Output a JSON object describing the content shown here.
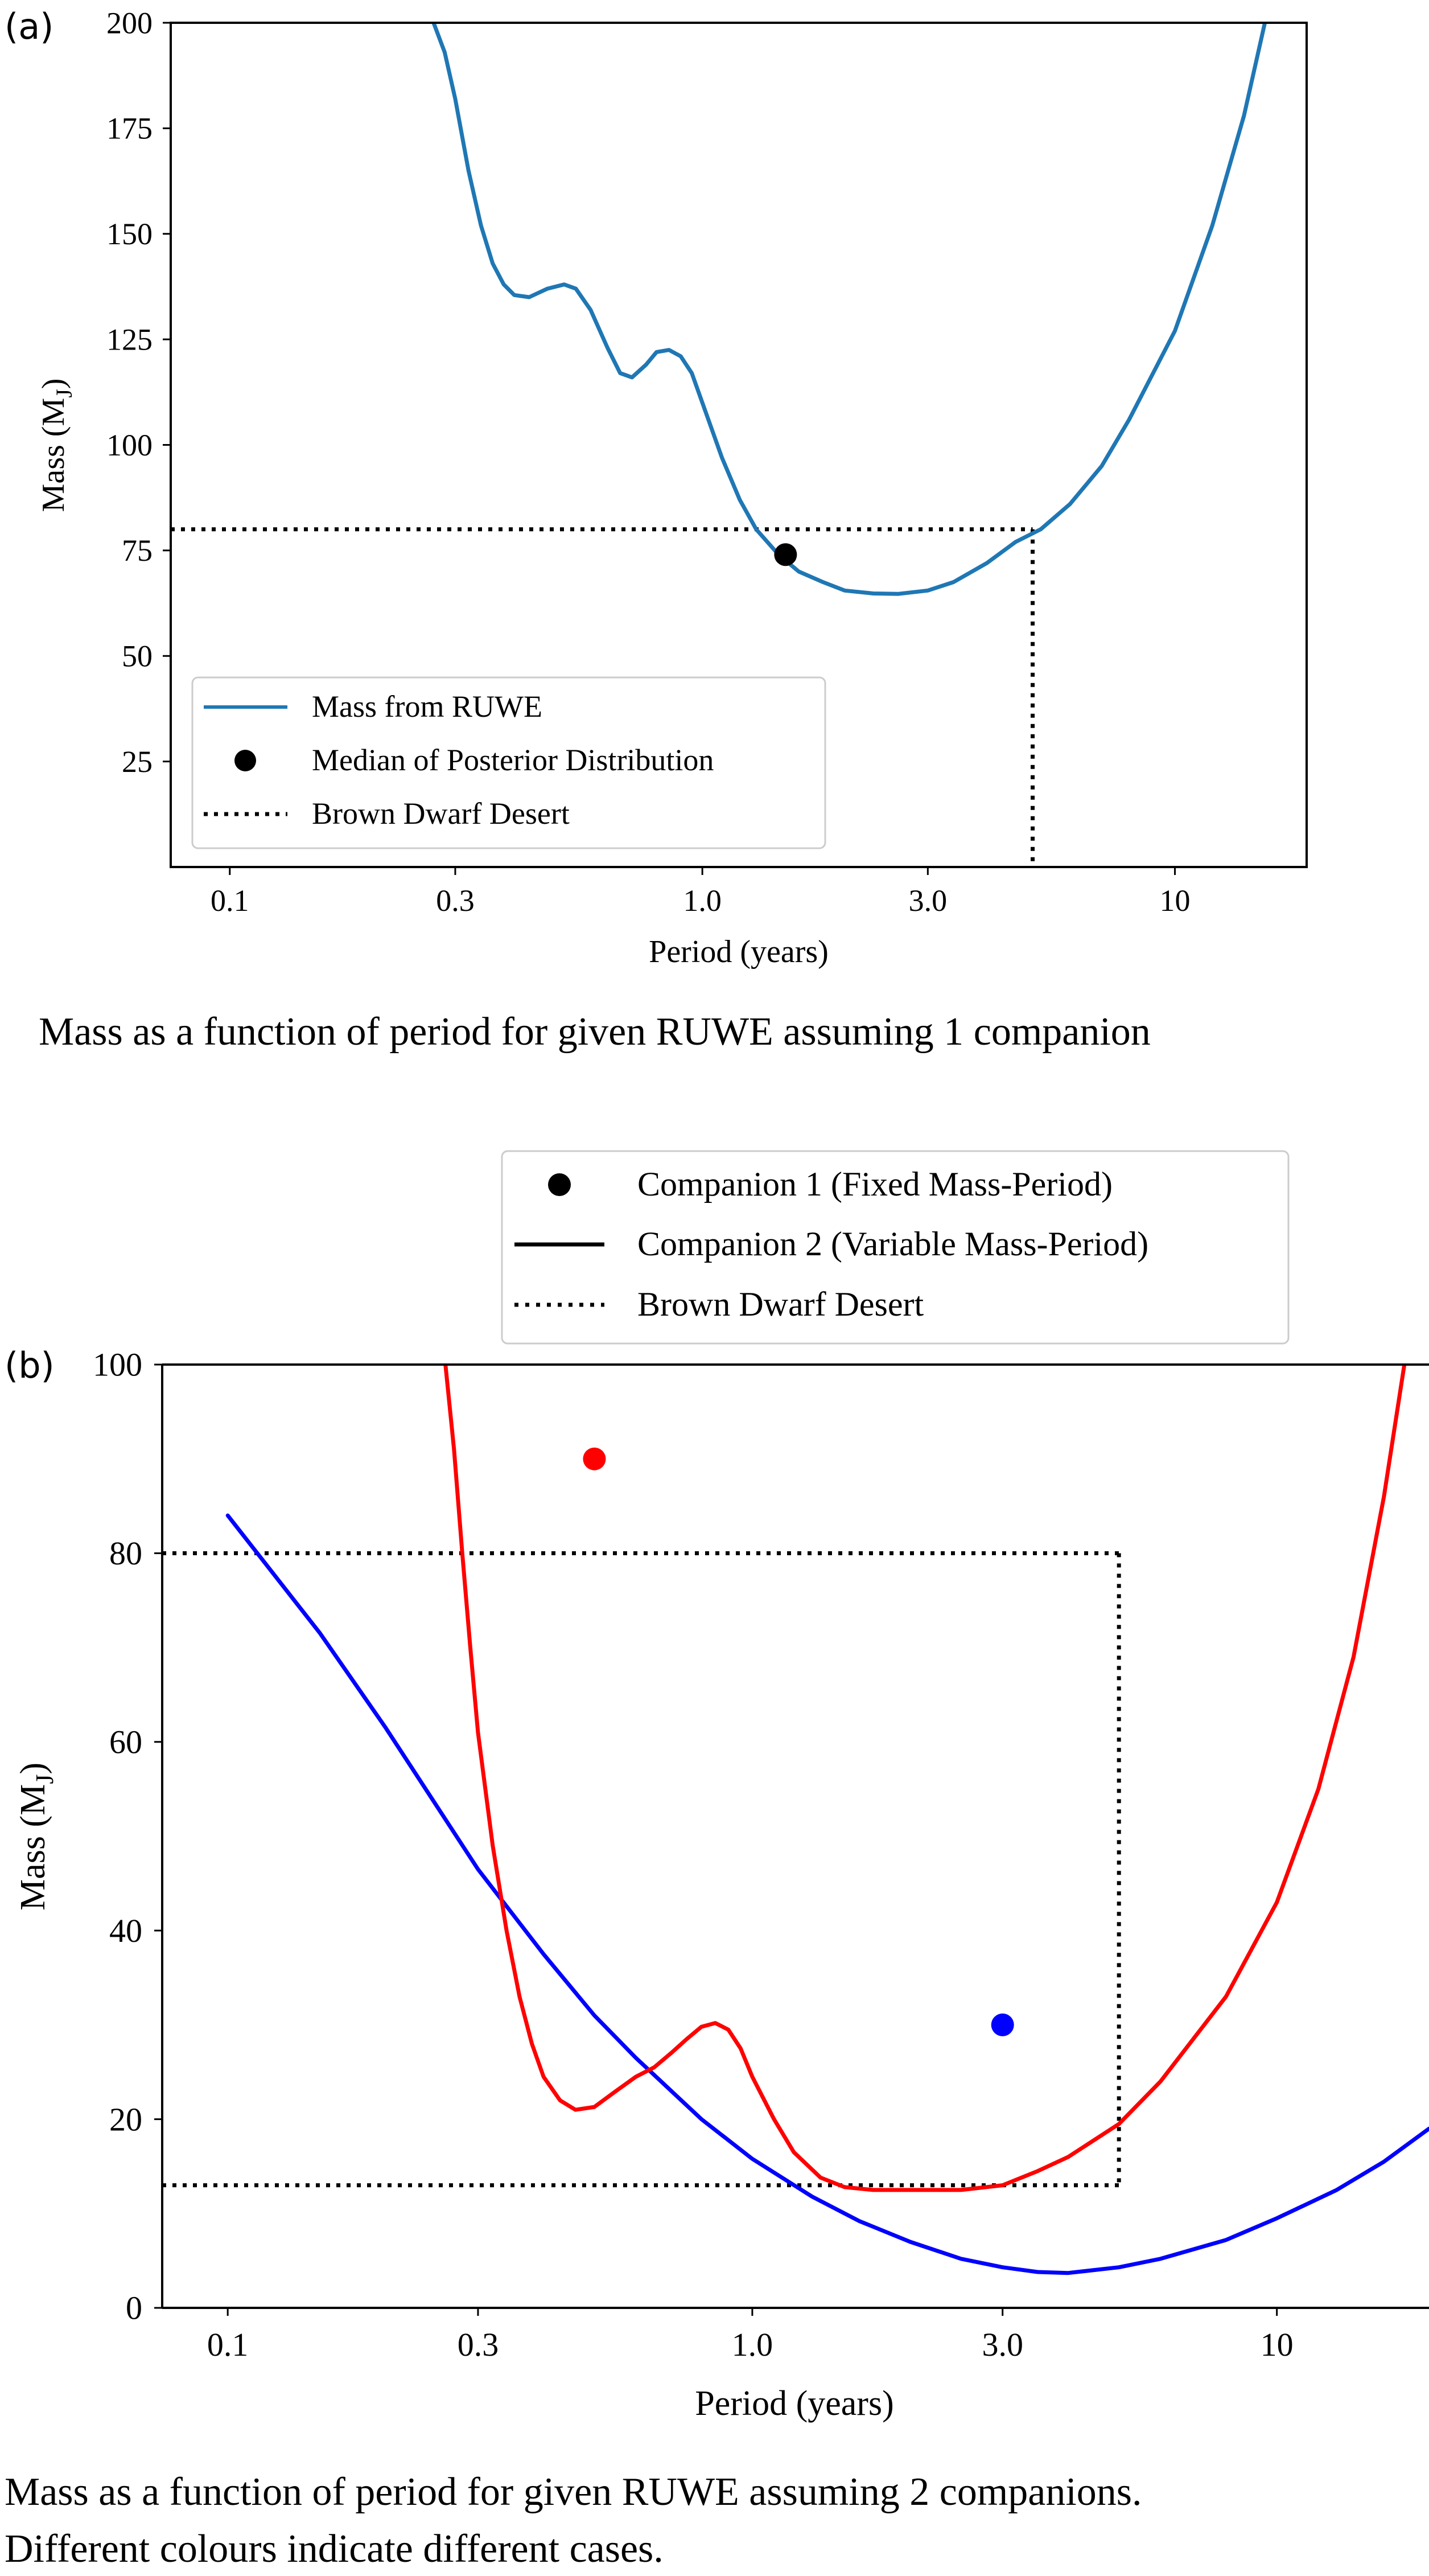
{
  "panel_a": {
    "label": "(a)",
    "caption": "Mass as a function of period for given RUWE assuming 1 companion"
  },
  "panel_b": {
    "label": "(b)",
    "caption_lines": [
      "Mass as a function of period for given RUWE assuming 2 companions.",
      "Different colours indicate different cases."
    ]
  },
  "chart_data": [
    {
      "id": "a",
      "type": "line",
      "xlabel": "Period (years)",
      "ylabel_main": "Mass (M",
      "ylabel_sub": "J",
      "ylabel_end": ")",
      "xscale": "log",
      "xlim": [
        0.075,
        19
      ],
      "ylim": [
        0,
        200
      ],
      "xticks": [
        {
          "value": 0.1,
          "label": "0.1"
        },
        {
          "value": 0.3,
          "label": "0.3"
        },
        {
          "value": 1.0,
          "label": "1.0"
        },
        {
          "value": 3.0,
          "label": "3.0"
        },
        {
          "value": 10,
          "label": "10"
        }
      ],
      "yticks": [
        {
          "value": 25,
          "label": "25"
        },
        {
          "value": 50,
          "label": "50"
        },
        {
          "value": 75,
          "label": "75"
        },
        {
          "value": 100,
          "label": "100"
        },
        {
          "value": 125,
          "label": "125"
        },
        {
          "value": 150,
          "label": "150"
        },
        {
          "value": 175,
          "label": "175"
        },
        {
          "value": 200,
          "label": "200"
        }
      ],
      "legend_position": "lower-left",
      "legend": [
        {
          "label": "Mass from RUWE",
          "kind": "line",
          "color": "#1f77b4"
        },
        {
          "label": "Median of Posterior Distribution",
          "kind": "marker",
          "color": "#000000"
        },
        {
          "label": "Brown Dwarf Desert",
          "kind": "dotted",
          "color": "#000000"
        }
      ],
      "series": [
        {
          "name": "Mass from RUWE",
          "color": "#1f77b4",
          "x": [
            0.27,
            0.285,
            0.3,
            0.32,
            0.34,
            0.36,
            0.38,
            0.4,
            0.43,
            0.47,
            0.51,
            0.54,
            0.58,
            0.63,
            0.67,
            0.71,
            0.76,
            0.8,
            0.85,
            0.9,
            0.95,
            1.0,
            1.1,
            1.2,
            1.3,
            1.45,
            1.6,
            1.8,
            2.0,
            2.3,
            2.6,
            3.0,
            3.4,
            4.0,
            4.6,
            5.2,
            6.0,
            7.0,
            8.0,
            10.0,
            12.0,
            14.0,
            15.5
          ],
          "y": [
            200,
            193,
            182,
            165,
            152,
            143,
            138,
            135.5,
            135,
            137,
            138,
            137,
            132,
            123,
            117,
            116,
            119,
            122,
            122.5,
            121,
            117,
            110,
            97,
            87,
            80,
            74,
            70,
            67.5,
            65.5,
            64.8,
            64.7,
            65.5,
            67.5,
            72,
            77,
            80,
            86,
            95,
            106,
            127,
            152,
            178,
            200
          ]
        }
      ],
      "points": [
        {
          "label": "Median of Posterior Distribution",
          "x": 1.5,
          "y": 74,
          "color": "#000000"
        }
      ],
      "desert": {
        "y": 80,
        "x_max": 5.0
      }
    },
    {
      "id": "b",
      "type": "line",
      "xlabel": "Period (years)",
      "ylabel_main": "Mass (M",
      "ylabel_sub": "J",
      "ylabel_end": ")",
      "xscale": "log",
      "xlim": [
        0.075,
        19.5
      ],
      "ylim": [
        0,
        100
      ],
      "xticks": [
        {
          "value": 0.1,
          "label": "0.1"
        },
        {
          "value": 0.3,
          "label": "0.3"
        },
        {
          "value": 1.0,
          "label": "1.0"
        },
        {
          "value": 3.0,
          "label": "3.0"
        },
        {
          "value": 10,
          "label": "10"
        }
      ],
      "yticks": [
        {
          "value": 0,
          "label": "0"
        },
        {
          "value": 20,
          "label": "20"
        },
        {
          "value": 40,
          "label": "40"
        },
        {
          "value": 60,
          "label": "60"
        },
        {
          "value": 80,
          "label": "80"
        },
        {
          "value": 100,
          "label": "100"
        }
      ],
      "legend_position": "above plot, right",
      "legend": [
        {
          "label": "Companion 1 (Fixed Mass-Period)",
          "kind": "marker",
          "color": "#000000"
        },
        {
          "label": "Companion 2 (Variable Mass-Period)",
          "kind": "line",
          "color": "#000000"
        },
        {
          "label": "Brown Dwarf Desert",
          "kind": "dotted",
          "color": "#000000"
        }
      ],
      "series": [
        {
          "color": "#0000ff",
          "x": [
            0.1,
            0.15,
            0.2,
            0.3,
            0.4,
            0.5,
            0.6,
            0.8,
            1.0,
            1.3,
            1.6,
            2.0,
            2.5,
            3.0,
            3.5,
            4.0,
            5.0,
            6.0,
            8.0,
            10.0,
            13.0,
            16.0,
            19.5
          ],
          "y": [
            84,
            71.5,
            61.5,
            46.5,
            37.5,
            31,
            26.5,
            20,
            15.8,
            11.8,
            9.2,
            7,
            5.2,
            4.3,
            3.8,
            3.7,
            4.3,
            5.2,
            7.2,
            9.5,
            12.5,
            15.5,
            19
          ]
        },
        {
          "color": "#ff0000",
          "x": [
            0.26,
            0.27,
            0.28,
            0.29,
            0.3,
            0.32,
            0.34,
            0.36,
            0.38,
            0.4,
            0.43,
            0.46,
            0.5,
            0.55,
            0.6,
            0.65,
            0.7,
            0.75,
            0.8,
            0.85,
            0.9,
            0.95,
            1.0,
            1.1,
            1.2,
            1.35,
            1.5,
            1.7,
            2.0,
            2.5,
            3.0,
            3.5,
            4.0,
            5.0,
            6.0,
            8.0,
            10.0,
            12.0,
            14.0,
            16.0,
            17.5
          ],
          "y": [
            100,
            91,
            80,
            70,
            61,
            49,
            40,
            33,
            28,
            24.5,
            22,
            21,
            21.3,
            23,
            24.5,
            25.5,
            27,
            28.5,
            29.8,
            30.2,
            29.5,
            27.5,
            24.5,
            20,
            16.5,
            13.8,
            12.8,
            12.5,
            12.5,
            12.5,
            13,
            14.5,
            16,
            19.5,
            24,
            33,
            43,
            55,
            69,
            86,
            100
          ]
        }
      ],
      "points": [
        {
          "x": 0.5,
          "y": 90,
          "color": "#ff0000"
        },
        {
          "x": 3.0,
          "y": 30,
          "color": "#0000ff"
        }
      ],
      "desert": {
        "y_high": 80,
        "y_low": 13,
        "x_max": 5.0
      }
    }
  ]
}
